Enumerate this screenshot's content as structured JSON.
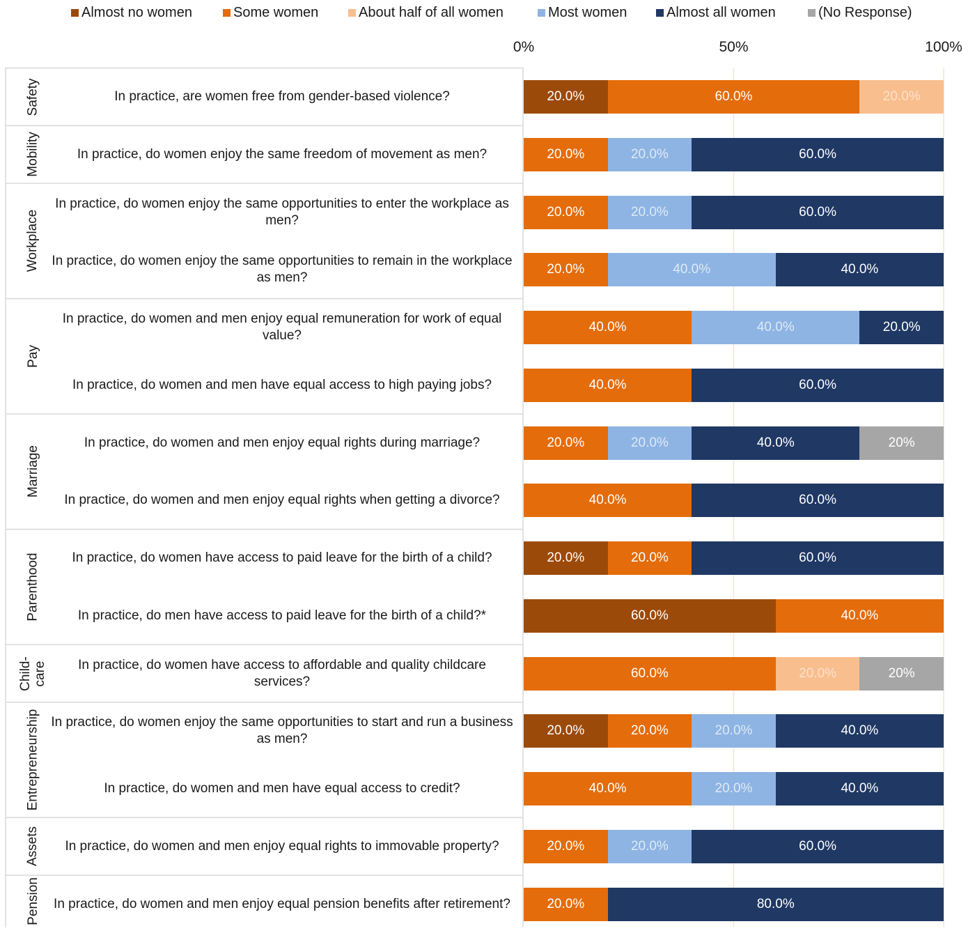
{
  "chart_data": {
    "type": "bar",
    "orientation": "horizontal-stacked-100",
    "x_ticks": [
      "0%",
      "50%",
      "100%"
    ],
    "xlim": [
      0,
      100
    ],
    "legend_position": "top",
    "series": [
      {
        "name": "Almost no women",
        "color": "#9C4A0A"
      },
      {
        "name": "Some women",
        "color": "#E46C0A"
      },
      {
        "name": "About half of all women",
        "color": "#F9BE8E"
      },
      {
        "name": "Most women",
        "color": "#8EB4E3"
      },
      {
        "name": "Almost all women",
        "color": "#1F3864"
      },
      {
        "name": "(No Response)",
        "color": "#A6A6A6"
      }
    ],
    "groups": [
      {
        "category": "Safety",
        "rows": [
          {
            "question": "In practice, are women free from gender-based violence?",
            "values": [
              20,
              60,
              20,
              0,
              0,
              0
            ],
            "labels": [
              "20.0%",
              "60.0%",
              "20.0%",
              "",
              "",
              ""
            ]
          }
        ]
      },
      {
        "category": "Mobility",
        "rows": [
          {
            "question": "In practice, do women enjoy the same freedom of movement as men?",
            "values": [
              0,
              20,
              0,
              20,
              60,
              0
            ],
            "labels": [
              "",
              "20.0%",
              "",
              "20.0%",
              "60.0%",
              ""
            ]
          }
        ]
      },
      {
        "category": "Workplace",
        "rows": [
          {
            "question": "In practice, do women enjoy the same opportunities to enter the workplace as men?",
            "values": [
              0,
              20,
              0,
              20,
              60,
              0
            ],
            "labels": [
              "",
              "20.0%",
              "",
              "20.0%",
              "60.0%",
              ""
            ]
          },
          {
            "question": "In practice, do women enjoy the same opportunities to remain in the workplace as men?",
            "values": [
              0,
              20,
              0,
              40,
              40,
              0
            ],
            "labels": [
              "",
              "20.0%",
              "",
              "40.0%",
              "40.0%",
              ""
            ]
          }
        ]
      },
      {
        "category": "Pay",
        "rows": [
          {
            "question": "In practice, do women and men enjoy equal remuneration for work of equal value?",
            "values": [
              0,
              40,
              0,
              40,
              20,
              0
            ],
            "labels": [
              "",
              "40.0%",
              "",
              "40.0%",
              "20.0%",
              ""
            ]
          },
          {
            "question": "In practice, do women and men have equal access to high paying jobs?",
            "values": [
              0,
              40,
              0,
              0,
              60,
              0
            ],
            "labels": [
              "",
              "40.0%",
              "",
              "",
              "60.0%",
              ""
            ]
          }
        ]
      },
      {
        "category": "Marriage",
        "rows": [
          {
            "question": "In practice, do women and men enjoy equal rights during marriage?",
            "values": [
              0,
              20,
              0,
              20,
              40,
              20
            ],
            "labels": [
              "",
              "20.0%",
              "",
              "20.0%",
              "40.0%",
              "20%"
            ]
          },
          {
            "question": "In practice, do women and men enjoy equal rights when getting a divorce?",
            "values": [
              0,
              40,
              0,
              0,
              60,
              0
            ],
            "labels": [
              "",
              "40.0%",
              "",
              "",
              "60.0%",
              ""
            ]
          }
        ]
      },
      {
        "category": "Parenthood",
        "rows": [
          {
            "question": "In practice, do women have access to paid leave for the birth of a child?",
            "values": [
              20,
              20,
              0,
              0,
              60,
              0
            ],
            "labels": [
              "20.0%",
              "20.0%",
              "",
              "",
              "60.0%",
              ""
            ]
          },
          {
            "question": "In practice, do men have access to paid leave for the birth of a child?*",
            "values": [
              60,
              40,
              0,
              0,
              0,
              0
            ],
            "labels": [
              "60.0%",
              "40.0%",
              "",
              "",
              "",
              ""
            ]
          }
        ]
      },
      {
        "category": "Child- care",
        "rows": [
          {
            "question": "In practice, do women have access to affordable and quality childcare services?",
            "values": [
              0,
              60,
              20,
              0,
              0,
              20
            ],
            "labels": [
              "",
              "60.0%",
              "20.0%",
              "",
              "",
              "20%"
            ]
          }
        ]
      },
      {
        "category": "Entrepreneurship",
        "rows": [
          {
            "question": "In practice, do women enjoy the same opportunities to start and run a business as men?",
            "values": [
              20,
              20,
              0,
              20,
              40,
              0
            ],
            "labels": [
              "20.0%",
              "20.0%",
              "",
              "20.0%",
              "40.0%",
              ""
            ]
          },
          {
            "question": "In practice, do women and men have equal access to credit?",
            "values": [
              0,
              40,
              0,
              20,
              40,
              0
            ],
            "labels": [
              "",
              "40.0%",
              "",
              "20.0%",
              "40.0%",
              ""
            ]
          }
        ]
      },
      {
        "category": "Assets",
        "rows": [
          {
            "question": "In practice, do women and men enjoy equal rights to immovable property?",
            "values": [
              0,
              20,
              0,
              20,
              60,
              0
            ],
            "labels": [
              "",
              "20.0%",
              "",
              "20.0%",
              "60.0%",
              ""
            ]
          }
        ]
      },
      {
        "category": "Pension",
        "rows": [
          {
            "question": "In practice, do women and men enjoy equal pension benefits after retirement?",
            "values": [
              0,
              20,
              0,
              0,
              80,
              0
            ],
            "labels": [
              "",
              "20.0%",
              "",
              "",
              "80.0%",
              ""
            ]
          }
        ]
      }
    ]
  }
}
